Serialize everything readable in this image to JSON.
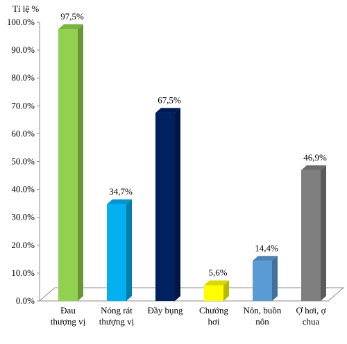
{
  "chart_data": {
    "type": "bar",
    "ylabel": "Tỉ lệ %",
    "ylim": [
      0,
      100
    ],
    "y_ticks": [
      "0.0%",
      "10.0%",
      "20.0%",
      "30.0%",
      "40.0%",
      "50.0%",
      "60.0%",
      "70.0%",
      "80.0%",
      "90.0%",
      "100.0%"
    ],
    "grid": false,
    "style": "3d-bar",
    "categories": [
      [
        "Đau",
        "thượng vị"
      ],
      [
        "Nóng rát",
        "thượng vị"
      ],
      [
        "Đầy bụng"
      ],
      [
        "Chướng",
        "hơi"
      ],
      [
        "Nôn, buồn",
        "nôn"
      ],
      [
        "Ợ hơi, ợ",
        "chua"
      ]
    ],
    "values": [
      97.5,
      34.7,
      67.5,
      5.6,
      14.4,
      46.9
    ],
    "data_labels": [
      "97,5%",
      "34,7%",
      "67,5%",
      "5,6%",
      "14,4%",
      "46,9%"
    ],
    "colors": [
      "#92d050",
      "#00b0f0",
      "#002060",
      "#ffff00",
      "#5b9bd5",
      "#7f7f7f"
    ]
  }
}
